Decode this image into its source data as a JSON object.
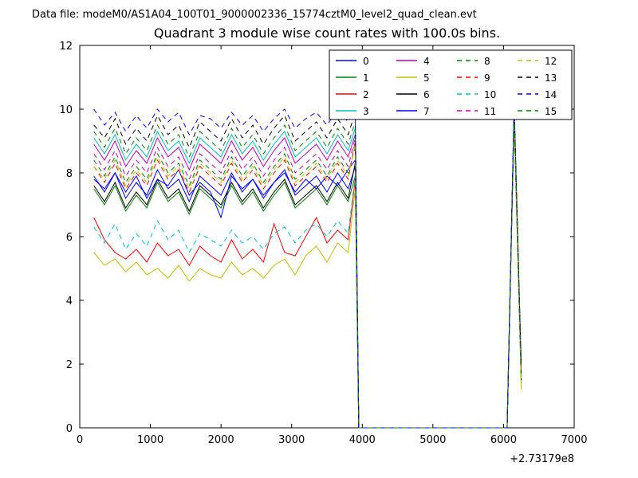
{
  "header": {
    "data_file_label": "Data file: modeM0/AS1A04_100T01_9000002336_15774cztM0_level2_quad_clean.evt"
  },
  "chart_data": {
    "type": "line",
    "title": "Quadrant 3 module wise count rates with 100.0s bins.",
    "xlabel": "",
    "ylabel": "",
    "x_offset_label": "+2.73179e8",
    "xlim": [
      0,
      7000
    ],
    "ylim": [
      0,
      12
    ],
    "xticks": [
      0,
      1000,
      2000,
      3000,
      4000,
      5000,
      6000,
      7000
    ],
    "yticks": [
      0,
      2,
      4,
      6,
      8,
      10,
      12
    ],
    "grid": false,
    "legend_position": "upper right inside",
    "legend_columns": 4,
    "x": [
      200,
      350,
      500,
      650,
      800,
      950,
      1100,
      1250,
      1400,
      1550,
      1700,
      1850,
      2000,
      2150,
      2300,
      2450,
      2600,
      2750,
      2900,
      3050,
      3200,
      3350,
      3500,
      3650,
      3800,
      3900,
      3950,
      6050,
      6150,
      6250
    ],
    "series": [
      {
        "name": "0",
        "color": "#0000ff",
        "dash": "solid",
        "values": [
          7.9,
          7.4,
          8.0,
          7.2,
          7.7,
          7.3,
          8.1,
          7.5,
          7.8,
          7.1,
          7.9,
          7.6,
          7.3,
          8.0,
          7.4,
          7.8,
          7.2,
          7.7,
          8.1,
          7.3,
          7.6,
          7.9,
          7.4,
          8.0,
          7.5,
          8.2,
          0,
          0,
          9.9,
          1.6
        ]
      },
      {
        "name": "1",
        "color": "#008000",
        "dash": "solid",
        "values": [
          7.5,
          7.0,
          7.6,
          6.8,
          7.3,
          6.9,
          7.7,
          7.1,
          7.4,
          6.7,
          7.5,
          7.2,
          6.9,
          7.6,
          7.0,
          7.4,
          6.8,
          7.3,
          7.7,
          6.9,
          7.2,
          7.5,
          7.0,
          7.6,
          7.1,
          7.9,
          0,
          0,
          9.8,
          1.5
        ]
      },
      {
        "name": "2",
        "color": "#ff0000",
        "dash": "solid",
        "values": [
          6.6,
          5.9,
          5.5,
          5.3,
          5.6,
          5.2,
          5.8,
          5.4,
          5.6,
          5.1,
          5.7,
          5.4,
          5.2,
          5.9,
          5.3,
          5.6,
          5.2,
          6.4,
          5.5,
          5.4,
          6.0,
          6.6,
          5.8,
          6.2,
          5.9,
          7.8,
          0,
          0,
          9.9,
          1.4
        ]
      },
      {
        "name": "3",
        "color": "#00bfbf",
        "dash": "solid",
        "values": [
          9.1,
          8.6,
          9.2,
          8.4,
          8.9,
          8.5,
          9.3,
          8.7,
          9.0,
          8.3,
          9.1,
          8.8,
          8.5,
          9.2,
          8.6,
          9.0,
          8.4,
          8.9,
          9.3,
          8.5,
          8.8,
          9.1,
          8.6,
          9.2,
          8.7,
          9.4,
          0,
          0,
          10.1,
          1.8
        ]
      },
      {
        "name": "4",
        "color": "#bf00bf",
        "dash": "solid",
        "values": [
          8.9,
          8.4,
          9.0,
          8.2,
          8.7,
          8.3,
          9.1,
          8.5,
          8.8,
          8.1,
          8.9,
          8.6,
          8.3,
          9.0,
          8.4,
          8.8,
          8.2,
          8.7,
          9.1,
          8.3,
          8.6,
          8.9,
          8.4,
          9.0,
          8.5,
          9.2,
          0,
          0,
          10.0,
          1.7
        ]
      },
      {
        "name": "5",
        "color": "#bfbf00",
        "dash": "solid",
        "values": [
          5.5,
          5.1,
          5.3,
          4.9,
          5.2,
          4.8,
          5.0,
          4.7,
          5.1,
          4.6,
          5.0,
          4.8,
          4.7,
          5.2,
          4.8,
          5.0,
          4.7,
          5.1,
          5.3,
          4.8,
          5.4,
          5.7,
          5.2,
          5.8,
          5.5,
          7.5,
          0,
          0,
          9.7,
          1.2
        ]
      },
      {
        "name": "6",
        "color": "#000000",
        "dash": "solid",
        "values": [
          7.6,
          7.1,
          7.7,
          6.9,
          7.4,
          7.0,
          7.8,
          7.2,
          7.5,
          6.8,
          7.6,
          7.3,
          7.0,
          7.7,
          7.1,
          7.5,
          6.9,
          7.4,
          7.8,
          7.0,
          7.3,
          7.6,
          7.1,
          7.7,
          7.2,
          8.3,
          0,
          0,
          9.8,
          1.5
        ]
      },
      {
        "name": "7",
        "color": "#0000ff",
        "dash": "solid",
        "values": [
          7.8,
          7.5,
          8.0,
          7.4,
          7.9,
          7.2,
          7.8,
          7.6,
          8.1,
          7.3,
          7.7,
          7.4,
          6.6,
          7.9,
          7.5,
          7.8,
          7.3,
          7.7,
          8.0,
          7.4,
          7.8,
          7.5,
          7.9,
          7.6,
          8.1,
          8.4,
          0,
          0,
          10.0,
          1.6
        ]
      },
      {
        "name": "8",
        "color": "#008000",
        "dash": "dashed",
        "values": [
          8.4,
          7.9,
          8.5,
          7.7,
          8.2,
          7.8,
          8.6,
          8.0,
          8.3,
          7.6,
          8.4,
          8.1,
          7.8,
          8.5,
          7.9,
          8.3,
          7.7,
          8.2,
          8.6,
          7.8,
          8.1,
          8.4,
          7.9,
          8.5,
          8.0,
          8.8,
          0,
          0,
          9.9,
          1.6
        ]
      },
      {
        "name": "9",
        "color": "#ff0000",
        "dash": "dashed",
        "values": [
          8.2,
          7.7,
          8.3,
          7.5,
          8.0,
          7.6,
          8.4,
          7.8,
          8.1,
          7.4,
          8.2,
          7.9,
          7.6,
          8.3,
          7.7,
          8.1,
          7.5,
          8.0,
          8.4,
          7.6,
          7.9,
          8.2,
          7.7,
          8.3,
          7.8,
          9.0,
          0,
          0,
          10.0,
          1.7
        ]
      },
      {
        "name": "10",
        "color": "#00bfbf",
        "dash": "dashed",
        "values": [
          6.3,
          5.8,
          6.4,
          5.6,
          6.1,
          5.7,
          6.5,
          5.9,
          6.2,
          5.5,
          6.1,
          5.9,
          5.7,
          6.2,
          5.8,
          6.0,
          5.6,
          6.1,
          6.3,
          5.8,
          6.2,
          6.4,
          6.0,
          6.5,
          6.1,
          7.9,
          0,
          0,
          9.8,
          1.4
        ]
      },
      {
        "name": "11",
        "color": "#bf00bf",
        "dash": "dashed",
        "values": [
          8.6,
          8.1,
          8.7,
          7.9,
          8.4,
          8.0,
          8.8,
          8.2,
          8.5,
          7.8,
          8.6,
          8.3,
          8.0,
          8.7,
          8.1,
          8.5,
          7.9,
          8.4,
          8.8,
          8.0,
          8.3,
          8.6,
          8.1,
          8.7,
          8.2,
          9.1,
          0,
          0,
          10.1,
          1.8
        ]
      },
      {
        "name": "12",
        "color": "#bfbf00",
        "dash": "dashed",
        "values": [
          8.2,
          7.8,
          8.4,
          7.6,
          8.1,
          7.7,
          8.5,
          7.9,
          8.2,
          7.5,
          8.3,
          8.0,
          7.7,
          8.4,
          7.8,
          8.2,
          7.6,
          8.1,
          8.5,
          7.7,
          8.0,
          8.3,
          7.8,
          8.4,
          7.9,
          8.9,
          0,
          0,
          9.9,
          1.3
        ]
      },
      {
        "name": "13",
        "color": "#000000",
        "dash": "dashed",
        "values": [
          9.5,
          9.1,
          9.7,
          8.9,
          9.4,
          9.0,
          9.8,
          9.2,
          9.5,
          8.8,
          9.6,
          9.3,
          9.0,
          9.7,
          9.1,
          9.5,
          8.9,
          9.4,
          9.8,
          9.0,
          9.3,
          9.6,
          9.1,
          9.7,
          9.2,
          9.9,
          0,
          0,
          10.2,
          1.9
        ]
      },
      {
        "name": "14",
        "color": "#0000ff",
        "dash": "dashed",
        "values": [
          10.0,
          9.5,
          9.9,
          9.3,
          9.8,
          9.4,
          10.0,
          9.6,
          9.9,
          9.2,
          9.8,
          9.7,
          9.4,
          9.9,
          9.5,
          9.8,
          9.3,
          9.7,
          10.0,
          9.4,
          9.7,
          9.9,
          9.5,
          10.0,
          9.6,
          10.1,
          0,
          0,
          10.2,
          2.0
        ]
      },
      {
        "name": "15",
        "color": "#008000",
        "dash": "dashed",
        "values": [
          9.3,
          8.8,
          9.4,
          8.6,
          9.1,
          8.7,
          9.5,
          8.9,
          9.2,
          8.5,
          9.3,
          9.0,
          8.7,
          9.4,
          8.8,
          9.2,
          8.6,
          9.1,
          9.5,
          8.7,
          9.0,
          9.3,
          8.8,
          9.4,
          8.9,
          9.6,
          0,
          0,
          10.0,
          1.7
        ]
      }
    ]
  }
}
